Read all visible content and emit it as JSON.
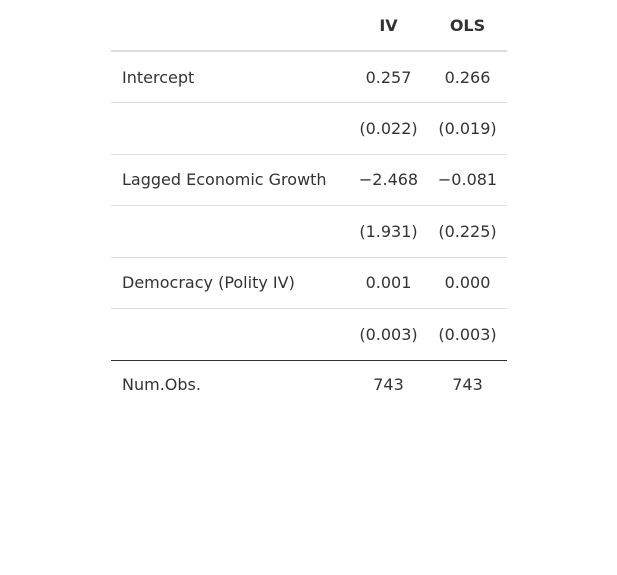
{
  "table": {
    "columns": [
      "",
      "IV",
      "OLS"
    ],
    "rows": [
      {
        "label": "Intercept",
        "iv": "0.257",
        "ols": "0.266"
      },
      {
        "label": "",
        "iv": "(0.022)",
        "ols": "(0.019)"
      },
      {
        "label": "Lagged Economic Growth",
        "iv": "−2.468",
        "ols": "−0.081"
      },
      {
        "label": "",
        "iv": "(1.931)",
        "ols": "(0.225)"
      },
      {
        "label": "Democracy (Polity IV)",
        "iv": "0.001",
        "ols": "0.000"
      },
      {
        "label": "",
        "iv": "(0.003)",
        "ols": "(0.003)"
      }
    ],
    "footer": {
      "label": "Num.Obs.",
      "iv": "743",
      "ols": "743"
    }
  }
}
